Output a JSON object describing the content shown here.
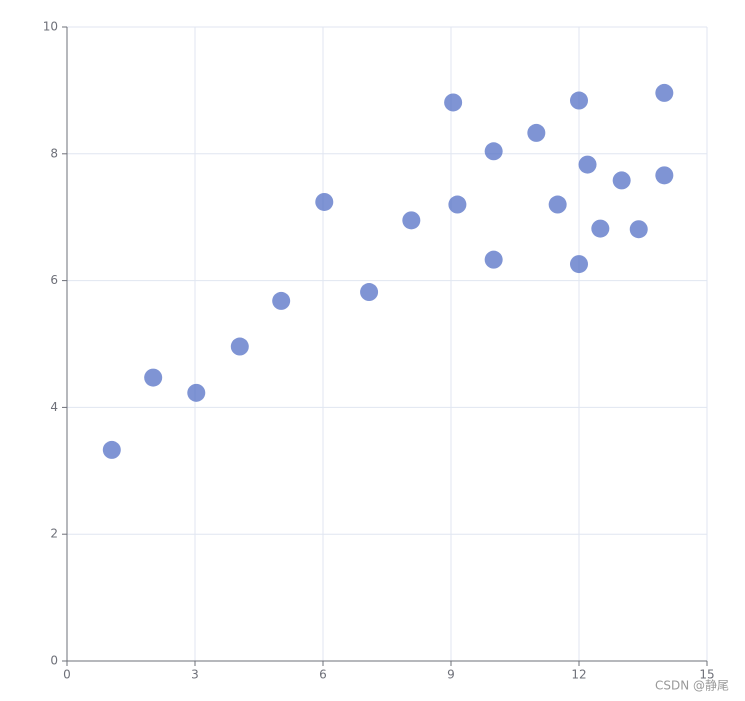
{
  "chart_data": {
    "type": "scatter",
    "series": [
      {
        "color": "#5470c6",
        "x": [
          10.0,
          8.07,
          13.0,
          9.05,
          11.0,
          14.0,
          13.4,
          10.0,
          14.0,
          12.5,
          9.15,
          11.5,
          3.03,
          12.2,
          2.02,
          1.05,
          4.05,
          6.03,
          12.0,
          12.0,
          7.08,
          5.02
        ],
        "values": [
          8.04,
          6.95,
          7.58,
          8.81,
          8.33,
          7.66,
          6.81,
          6.33,
          8.96,
          6.82,
          7.2,
          7.2,
          4.23,
          7.83,
          4.47,
          3.33,
          4.96,
          7.24,
          6.26,
          8.84,
          5.82,
          5.68
        ]
      }
    ],
    "xlim": [
      0,
      15
    ],
    "xticks": [
      0,
      3,
      6,
      9,
      12,
      15
    ],
    "ylim": [
      0,
      10
    ],
    "yticks": [
      0,
      2,
      4,
      6,
      8,
      10
    ],
    "grid": true,
    "watermark": "CSDN @静尾"
  }
}
